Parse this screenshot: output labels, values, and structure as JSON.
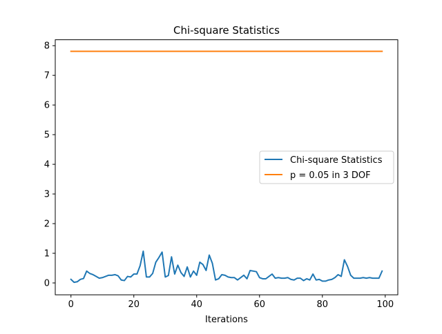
{
  "chart_data": {
    "type": "line",
    "title": "Chi-square Statistics",
    "xlabel": "Iterations",
    "ylabel": "",
    "xlim": [
      -5.0,
      104.0
    ],
    "ylim": [
      -0.4,
      8.2
    ],
    "xticks": [
      0,
      20,
      40,
      60,
      80,
      100
    ],
    "yticks": [
      0,
      1,
      2,
      3,
      4,
      5,
      6,
      7,
      8
    ],
    "grid": false,
    "legend_position": "center-right",
    "series": [
      {
        "name": "Chi-square Statistics",
        "color": "#1f77b4",
        "x": [
          0,
          1,
          2,
          3,
          4,
          5,
          6,
          7,
          8,
          9,
          10,
          11,
          12,
          13,
          14,
          15,
          16,
          17,
          18,
          19,
          20,
          21,
          22,
          23,
          24,
          25,
          26,
          27,
          28,
          29,
          30,
          31,
          32,
          33,
          34,
          35,
          36,
          37,
          38,
          39,
          40,
          41,
          42,
          43,
          44,
          45,
          46,
          47,
          48,
          49,
          50,
          51,
          52,
          53,
          54,
          55,
          56,
          57,
          58,
          59,
          60,
          61,
          62,
          63,
          64,
          65,
          66,
          67,
          68,
          69,
          70,
          71,
          72,
          73,
          74,
          75,
          76,
          77,
          78,
          79,
          80,
          81,
          82,
          83,
          84,
          85,
          86,
          87,
          88,
          89,
          90,
          91,
          92,
          93,
          94,
          95,
          96,
          97,
          98,
          99
        ],
        "y": [
          0.12,
          0.02,
          0.04,
          0.12,
          0.15,
          0.4,
          0.32,
          0.28,
          0.22,
          0.16,
          0.18,
          0.22,
          0.26,
          0.26,
          0.28,
          0.24,
          0.1,
          0.08,
          0.22,
          0.2,
          0.3,
          0.3,
          0.58,
          1.07,
          0.2,
          0.2,
          0.32,
          0.7,
          0.86,
          1.04,
          0.2,
          0.25,
          0.88,
          0.3,
          0.6,
          0.35,
          0.22,
          0.54,
          0.2,
          0.4,
          0.26,
          0.7,
          0.62,
          0.42,
          0.94,
          0.66,
          0.1,
          0.14,
          0.28,
          0.26,
          0.2,
          0.18,
          0.18,
          0.1,
          0.18,
          0.26,
          0.14,
          0.42,
          0.4,
          0.38,
          0.18,
          0.14,
          0.14,
          0.22,
          0.3,
          0.16,
          0.18,
          0.16,
          0.16,
          0.18,
          0.12,
          0.1,
          0.16,
          0.16,
          0.08,
          0.14,
          0.1,
          0.3,
          0.1,
          0.12,
          0.06,
          0.06,
          0.1,
          0.12,
          0.18,
          0.28,
          0.22,
          0.78,
          0.56,
          0.26,
          0.16,
          0.16,
          0.16,
          0.18,
          0.16,
          0.18,
          0.16,
          0.16,
          0.16,
          0.4
        ]
      },
      {
        "name": "p = 0.05 in 3 DOF",
        "color": "#ff7f0e",
        "x": [
          0,
          99
        ],
        "y": [
          7.81,
          7.81
        ]
      }
    ]
  }
}
